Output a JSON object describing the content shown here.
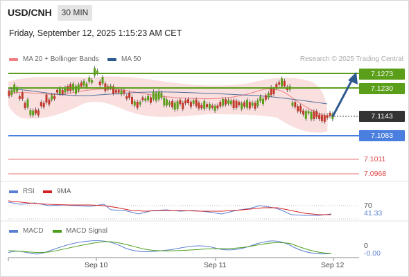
{
  "header": {
    "symbol": "USD/CNH",
    "timeframe": "30 MIN",
    "datetime": "Friday, September 12, 2025 1:15:23 AM CET"
  },
  "legend": {
    "ma20_label": "MA 20 + Bollinger Bands",
    "ma20_color": "#f08080",
    "ma50_label": "MA 50",
    "ma50_color": "#2f5a8f"
  },
  "watermark": "Research © 2025 Trading Central",
  "levels": {
    "resistance_2": "7.1273",
    "resistance_1": "7.1230",
    "last_price": "7.1143",
    "pivot": "7.1083",
    "support_1": "7.1011",
    "support_2": "7.0968",
    "resistance_color": "#5a9e1a",
    "pivot_color": "#4a7fe0",
    "support_color": "#e04848",
    "price_color": "#333333",
    "arrow_color": "#2f5a8f"
  },
  "rsi": {
    "label": "RSI",
    "ma_label": "9MA",
    "rsi_color": "#5b7fd1",
    "ma_color": "#d42020",
    "level_label": "70",
    "value": "41.33"
  },
  "macd": {
    "label": "MACD",
    "signal_label": "MACD Signal",
    "macd_color": "#5b7fd1",
    "signal_color": "#4a9e1a",
    "zero_label": "0",
    "value": "-0.00"
  },
  "xaxis": {
    "labels": [
      "Sep 10",
      "Sep 11",
      "Sep 12"
    ]
  }
}
